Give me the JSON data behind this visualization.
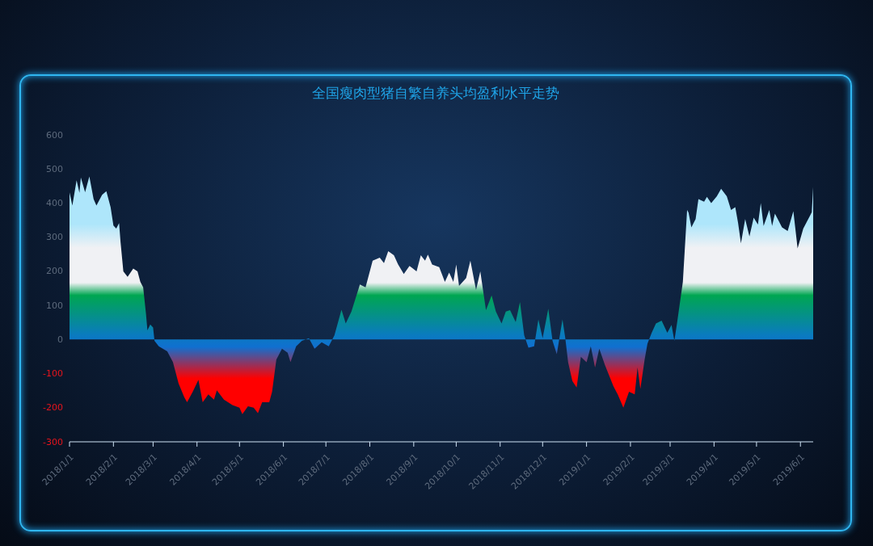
{
  "chart_data": {
    "type": "area",
    "title": "全国瘦肉型猪自繁自养头均盈利水平走势",
    "x": [
      "2018-01-01",
      "2018-01-03",
      "2018-01-06",
      "2018-01-08",
      "2018-01-09",
      "2018-01-12",
      "2018-01-15",
      "2018-01-18",
      "2018-01-20",
      "2018-01-24",
      "2018-01-27",
      "2018-01-30",
      "2018-02-01",
      "2018-02-03",
      "2018-02-05",
      "2018-02-06",
      "2018-02-08",
      "2018-02-11",
      "2018-02-15",
      "2018-02-18",
      "2018-02-20",
      "2018-02-22",
      "2018-02-24",
      "2018-02-25",
      "2018-02-27",
      "2018-03-01",
      "2018-03-02",
      "2018-03-05",
      "2018-03-11",
      "2018-03-15",
      "2018-03-19",
      "2018-03-23",
      "2018-03-25",
      "2018-03-29",
      "2018-04-02",
      "2018-04-05",
      "2018-04-09",
      "2018-04-13",
      "2018-04-15",
      "2018-04-20",
      "2018-04-26",
      "2018-05-01",
      "2018-05-03",
      "2018-05-07",
      "2018-05-11",
      "2018-05-14",
      "2018-05-17",
      "2018-05-22",
      "2018-05-24",
      "2018-05-27",
      "2018-05-31",
      "2018-06-04",
      "2018-06-06",
      "2018-06-10",
      "2018-06-14",
      "2018-06-19",
      "2018-06-23",
      "2018-06-28",
      "2018-07-03",
      "2018-07-07",
      "2018-07-12",
      "2018-07-15",
      "2018-07-19",
      "2018-07-25",
      "2018-07-29",
      "2018-08-03",
      "2018-08-08",
      "2018-08-11",
      "2018-08-14",
      "2018-08-18",
      "2018-08-21",
      "2018-08-25",
      "2018-08-29",
      "2018-09-03",
      "2018-09-06",
      "2018-09-09",
      "2018-09-11",
      "2018-09-14",
      "2018-09-19",
      "2018-09-23",
      "2018-09-26",
      "2018-09-29",
      "2018-10-01",
      "2018-10-03",
      "2018-10-08",
      "2018-10-11",
      "2018-10-15",
      "2018-10-18",
      "2018-10-22",
      "2018-10-26",
      "2018-10-29",
      "2018-11-02",
      "2018-11-05",
      "2018-11-08",
      "2018-11-12",
      "2018-11-15",
      "2018-11-18",
      "2018-11-21",
      "2018-11-25",
      "2018-11-28",
      "2018-12-01",
      "2018-12-05",
      "2018-12-08",
      "2018-12-11",
      "2018-12-15",
      "2018-12-17",
      "2018-12-19",
      "2018-12-22",
      "2018-12-25",
      "2018-12-28",
      "2019-01-01",
      "2019-01-04",
      "2019-01-07",
      "2019-01-10",
      "2019-01-14",
      "2019-01-20",
      "2019-01-23",
      "2019-01-27",
      "2019-01-31",
      "2019-02-04",
      "2019-02-06",
      "2019-02-08",
      "2019-02-11",
      "2019-02-13",
      "2019-02-16",
      "2019-02-19",
      "2019-02-23",
      "2019-02-27",
      "2019-03-02",
      "2019-03-04",
      "2019-03-06",
      "2019-03-10",
      "2019-03-12",
      "2019-03-13",
      "2019-03-14",
      "2019-03-16",
      "2019-03-19",
      "2019-03-21",
      "2019-03-25",
      "2019-03-27",
      "2019-03-30",
      "2019-04-03",
      "2019-04-06",
      "2019-04-10",
      "2019-04-13",
      "2019-04-16",
      "2019-04-18",
      "2019-04-20",
      "2019-04-23",
      "2019-04-26",
      "2019-04-29",
      "2019-05-02",
      "2019-05-04",
      "2019-05-06",
      "2019-05-10",
      "2019-05-12",
      "2019-05-14",
      "2019-05-19",
      "2019-05-23",
      "2019-05-27",
      "2019-05-30",
      "2019-06-03",
      "2019-06-08",
      "2019-06-09",
      "2019-06-10"
    ],
    "series": [
      {
        "color": "#00a651",
        "values": [
          431,
          393,
          467,
          430,
          475,
          432,
          478,
          412,
          393,
          424,
          435,
          388,
          334,
          325,
          341,
          287,
          200,
          184,
          208,
          200,
          169,
          153,
          75,
          27,
          44,
          35,
          -4,
          -20,
          -35,
          -66,
          -129,
          -169,
          -184,
          -153,
          -118,
          -184,
          -161,
          -176,
          -149,
          -176,
          -192,
          -200,
          -219,
          -196,
          -200,
          -216,
          -184,
          -184,
          -153,
          -59,
          -27,
          -39,
          -66,
          -20,
          -4,
          4,
          -27,
          -8,
          -20,
          12,
          87,
          47,
          82,
          161,
          153,
          231,
          240,
          224,
          259,
          247,
          220,
          192,
          216,
          200,
          247,
          231,
          249,
          220,
          212,
          169,
          196,
          169,
          220,
          157,
          180,
          231,
          145,
          200,
          86,
          129,
          82,
          47,
          82,
          86,
          51,
          110,
          12,
          -24,
          -20,
          59,
          4,
          90,
          -4,
          -43,
          59,
          4,
          -67,
          -122,
          -141,
          -51,
          -67,
          -20,
          -82,
          -27,
          -75,
          -137,
          -161,
          -200,
          -153,
          -161,
          -82,
          -145,
          -59,
          -12,
          20,
          47,
          55,
          20,
          43,
          -4,
          51,
          169,
          310,
          380,
          372,
          329,
          353,
          412,
          404,
          418,
          400,
          420,
          442,
          420,
          380,
          388,
          341,
          282,
          353,
          302,
          357,
          337,
          400,
          333,
          380,
          333,
          369,
          329,
          318,
          376,
          267,
          325,
          365,
          373,
          447
        ]
      }
    ],
    "xlim": [
      "2018-01-01",
      "2019-06-10"
    ],
    "xticks": [
      {
        "value": "2018-01-01",
        "label": "2018/1/1"
      },
      {
        "value": "2018-02-01",
        "label": "2018/2/1"
      },
      {
        "value": "2018-03-01",
        "label": "2018/3/1"
      },
      {
        "value": "2018-04-01",
        "label": "2018/4/1"
      },
      {
        "value": "2018-05-01",
        "label": "2018/5/1"
      },
      {
        "value": "2018-06-01",
        "label": "2018/6/1"
      },
      {
        "value": "2018-07-01",
        "label": "2018/7/1"
      },
      {
        "value": "2018-08-01",
        "label": "2018/8/1"
      },
      {
        "value": "2018-09-01",
        "label": "2018/9/1"
      },
      {
        "value": "2018-10-01",
        "label": "2018/10/1"
      },
      {
        "value": "2018-11-01",
        "label": "2018/11/1"
      },
      {
        "value": "2018-12-01",
        "label": "2018/12/1"
      },
      {
        "value": "2019-01-01",
        "label": "2019/1/1"
      },
      {
        "value": "2019-02-01",
        "label": "2019/2/1"
      },
      {
        "value": "2019-03-01",
        "label": "2019/3/1"
      },
      {
        "value": "2019-04-01",
        "label": "2019/4/1"
      },
      {
        "value": "2019-05-01",
        "label": "2019/5/1"
      },
      {
        "value": "2019-06-01",
        "label": "2019/6/1"
      }
    ],
    "ylim": [
      -300,
      600
    ],
    "yticks": [
      -300,
      -200,
      -100,
      0,
      100,
      200,
      300,
      400,
      500,
      600
    ],
    "grid": false,
    "legend": false
  }
}
